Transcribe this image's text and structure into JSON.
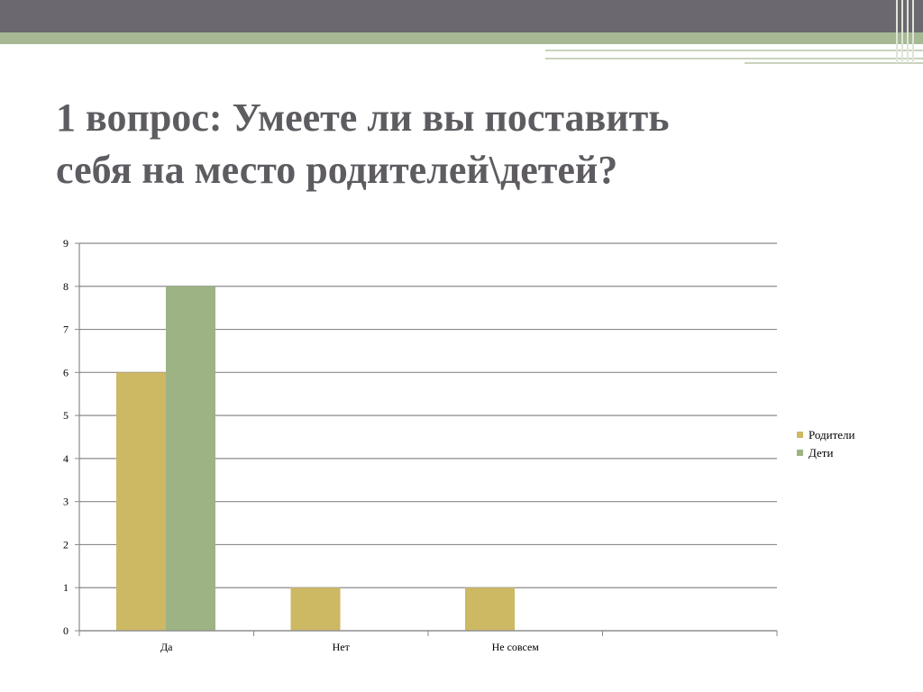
{
  "slide": {
    "title_line1": "1 вопрос: Умеете ли вы поставить",
    "title_line2": "себя на место родителей\\детей?"
  },
  "colors": {
    "top_bar": "#6b6870",
    "green_band": "#a6b994",
    "series_parents": "#cdb864",
    "series_children": "#9db384",
    "title": "#5e5c61"
  },
  "chart_data": {
    "type": "bar",
    "categories": [
      "Да",
      "Нет",
      "Не совсем",
      ""
    ],
    "series": [
      {
        "name": "Родители",
        "values": [
          6,
          1,
          1,
          null
        ],
        "color": "#cdb864"
      },
      {
        "name": "Дети",
        "values": [
          8,
          null,
          null,
          null
        ],
        "color": "#9db384"
      }
    ],
    "ylim": [
      0,
      9
    ],
    "yticks": [
      "0",
      "1",
      "2",
      "3",
      "4",
      "5",
      "6",
      "7",
      "8",
      "9"
    ],
    "grid": true,
    "legend_position": "right"
  }
}
